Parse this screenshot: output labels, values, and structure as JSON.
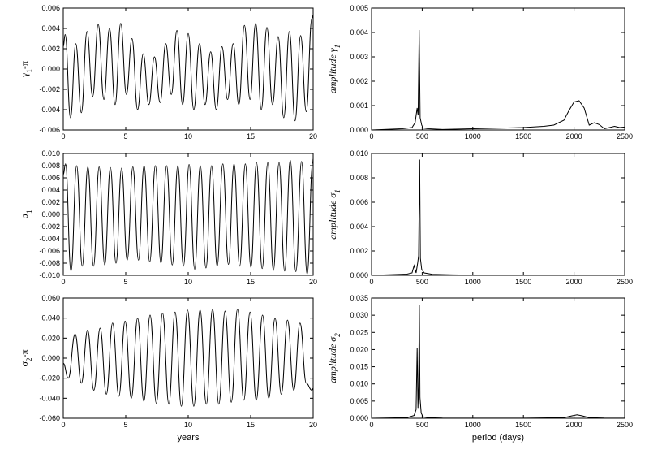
{
  "chart_data": [
    {
      "id": "gamma1",
      "type": "line",
      "ylabel": "γ1-π",
      "xlabel": "",
      "xlim": [
        0,
        20
      ],
      "ylim": [
        -0.006,
        0.006
      ],
      "xticks": [
        "0",
        "5",
        "10",
        "15",
        "20"
      ],
      "yticks": [
        "-0.006",
        "-0.004",
        "-0.002",
        "0.000",
        "0.002",
        "0.004",
        "0.006"
      ],
      "series": [
        {
          "x": [
            0,
            0.15,
            0.58,
            1.0,
            1.45,
            1.9,
            2.35,
            2.8,
            3.25,
            3.7,
            4.15,
            4.6,
            5.05,
            5.5,
            5.95,
            6.4,
            6.85,
            7.3,
            7.75,
            8.2,
            8.65,
            9.1,
            9.55,
            10.0,
            10.45,
            10.9,
            11.35,
            11.8,
            12.25,
            12.7,
            13.15,
            13.6,
            14.05,
            14.5,
            14.95,
            15.4,
            15.85,
            16.3,
            16.75,
            17.2,
            17.65,
            18.1,
            18.55,
            19.0,
            19.45,
            19.9,
            20.0
          ],
          "values": [
            0.0022,
            0.0034,
            -0.0048,
            0.0025,
            -0.0043,
            0.0037,
            -0.0027,
            0.0044,
            -0.003,
            0.004,
            -0.0035,
            0.0045,
            -0.0025,
            0.003,
            -0.004,
            0.0015,
            -0.0035,
            0.0012,
            -0.0033,
            0.0025,
            -0.0025,
            0.0038,
            -0.0035,
            0.0035,
            -0.004,
            0.0025,
            -0.0035,
            0.0017,
            -0.004,
            0.0022,
            -0.003,
            0.0025,
            -0.0035,
            0.0043,
            -0.003,
            0.0045,
            -0.004,
            0.0041,
            -0.0035,
            0.0032,
            -0.0048,
            0.0037,
            -0.0051,
            0.0033,
            -0.0042,
            0.005,
            0.0053
          ]
        }
      ]
    },
    {
      "id": "amp_gamma1",
      "type": "line",
      "ylabel": "amplitude γ1",
      "xlabel": "",
      "xlim": [
        0,
        2500
      ],
      "ylim": [
        0,
        0.005
      ],
      "xticks": [
        "0",
        "500",
        "1000",
        "1500",
        "2000",
        "2500"
      ],
      "yticks": [
        "0.000",
        "0.001",
        "0.002",
        "0.003",
        "0.004",
        "0.005"
      ],
      "series": [
        {
          "x": [
            0,
            300,
            400,
            430,
            450,
            460,
            470,
            480,
            495,
            510,
            560,
            700,
            1000,
            1300,
            1500,
            1700,
            1800,
            1900,
            1950,
            2000,
            2050,
            2100,
            2150,
            2200,
            2250,
            2300,
            2400,
            2450,
            2500
          ],
          "values": [
            0,
            5e-05,
            0.0001,
            0.0003,
            0.0009,
            0.0006,
            0.0041,
            0.0005,
            0.0002,
            8e-05,
            5e-05,
            2e-05,
            5e-05,
            8e-05,
            0.0001,
            0.00015,
            0.0002,
            0.0004,
            0.0008,
            0.00115,
            0.0012,
            0.0009,
            0.0002,
            0.0003,
            0.00022,
            5e-05,
            0.00015,
            0.0001,
            0.00012
          ]
        }
      ]
    },
    {
      "id": "sigma1",
      "type": "line",
      "ylabel": "σ1",
      "xlabel": "",
      "xlim": [
        0,
        20
      ],
      "ylim": [
        -0.01,
        0.01
      ],
      "xticks": [
        "0",
        "5",
        "10",
        "15",
        "20"
      ],
      "yticks": [
        "-0.010",
        "-0.008",
        "-0.006",
        "-0.004",
        "-0.002",
        "0.000",
        "0.002",
        "0.004",
        "0.006",
        "0.008",
        "0.010"
      ],
      "series": [
        {
          "x": [
            0,
            0.18,
            0.62,
            1.07,
            1.52,
            1.97,
            2.42,
            2.87,
            3.32,
            3.77,
            4.22,
            4.67,
            5.12,
            5.57,
            6.02,
            6.47,
            6.92,
            7.37,
            7.82,
            8.27,
            8.72,
            9.17,
            9.62,
            10.07,
            10.52,
            10.97,
            11.42,
            11.87,
            12.32,
            12.77,
            13.22,
            13.67,
            14.12,
            14.57,
            15.02,
            15.47,
            15.92,
            16.37,
            16.82,
            17.27,
            17.72,
            18.17,
            18.62,
            19.07,
            19.52,
            19.97,
            20.0
          ],
          "values": [
            0.0065,
            0.0083,
            -0.0093,
            0.008,
            -0.0085,
            0.0078,
            -0.0085,
            0.0078,
            -0.0083,
            0.0077,
            -0.008,
            0.0076,
            -0.0075,
            0.0078,
            -0.0075,
            0.008,
            -0.0078,
            0.008,
            -0.008,
            0.008,
            -0.0083,
            0.008,
            -0.0085,
            0.0082,
            -0.009,
            0.008,
            -0.0088,
            0.008,
            -0.0085,
            0.0083,
            -0.0082,
            0.0083,
            -0.0085,
            0.0083,
            -0.0087,
            0.0085,
            -0.0089,
            0.0085,
            -0.0092,
            0.0085,
            -0.0093,
            0.0089,
            -0.0094,
            0.0087,
            -0.0098,
            0.0085,
            0.0092
          ]
        }
      ]
    },
    {
      "id": "amp_sigma1",
      "type": "line",
      "ylabel": "amplitude σ1",
      "xlabel": "",
      "xlim": [
        0,
        2500
      ],
      "ylim": [
        0,
        0.01
      ],
      "xticks": [
        "0",
        "500",
        "1000",
        "1500",
        "2000",
        "2500"
      ],
      "yticks": [
        "0.000",
        "0.002",
        "0.004",
        "0.006",
        "0.008",
        "0.010"
      ],
      "series": [
        {
          "x": [
            0,
            350,
            400,
            420,
            440,
            455,
            465,
            475,
            482,
            495,
            520,
            600,
            800,
            1000,
            1500,
            2000,
            2500
          ],
          "values": [
            0,
            0.0001,
            0.0002,
            0.0008,
            0.0002,
            0.001,
            0.0016,
            0.0095,
            0.0014,
            0.0005,
            0.0002,
            8e-05,
            4e-05,
            2e-05,
            2e-05,
            3e-05,
            1e-05
          ]
        }
      ]
    },
    {
      "id": "sigma2",
      "type": "line",
      "ylabel": "σ2-π",
      "xlabel": "years",
      "xlim": [
        0,
        20
      ],
      "ylim": [
        -0.06,
        0.06
      ],
      "xticks": [
        "0",
        "5",
        "10",
        "15",
        "20"
      ],
      "yticks": [
        "-0.060",
        "-0.040",
        "-0.020",
        "0.000",
        "0.020",
        "0.040",
        "0.060"
      ],
      "series": [
        {
          "x": [
            0,
            0.4,
            0.95,
            1.45,
            1.95,
            2.45,
            2.95,
            3.45,
            3.95,
            4.45,
            4.95,
            5.45,
            5.95,
            6.45,
            6.95,
            7.45,
            7.95,
            8.45,
            8.95,
            9.45,
            9.95,
            10.45,
            10.95,
            11.45,
            11.95,
            12.45,
            12.95,
            13.45,
            13.95,
            14.45,
            14.95,
            15.45,
            15.95,
            16.45,
            16.95,
            17.45,
            17.95,
            18.45,
            18.95,
            19.45,
            19.9,
            20.0
          ],
          "values": [
            -0.005,
            -0.02,
            0.024,
            -0.025,
            0.028,
            -0.032,
            0.03,
            -0.036,
            0.035,
            -0.038,
            0.037,
            -0.04,
            0.04,
            -0.043,
            0.043,
            -0.045,
            0.045,
            -0.046,
            0.046,
            -0.048,
            0.048,
            -0.048,
            0.048,
            -0.046,
            0.049,
            -0.046,
            0.047,
            -0.044,
            0.049,
            -0.042,
            0.046,
            -0.042,
            0.043,
            -0.04,
            0.04,
            -0.036,
            0.038,
            -0.032,
            0.035,
            -0.025,
            -0.032,
            -0.03
          ]
        }
      ]
    },
    {
      "id": "amp_sigma2",
      "type": "line",
      "ylabel": "amplitude σ2",
      "xlabel": "period (days)",
      "xlim": [
        0,
        2500
      ],
      "ylim": [
        0,
        0.035
      ],
      "xticks": [
        "0",
        "500",
        "1000",
        "1500",
        "2000",
        "2500"
      ],
      "yticks": [
        "0.000",
        "0.005",
        "0.010",
        "0.015",
        "0.020",
        "0.025",
        "0.030",
        "0.035"
      ],
      "series": [
        {
          "x": [
            0,
            350,
            420,
            440,
            450,
            458,
            465,
            472,
            478,
            490,
            510,
            560,
            700,
            1000,
            1500,
            1900,
            1980,
            2030,
            2080,
            2150,
            2300,
            2500
          ],
          "values": [
            0,
            0.0002,
            0.0008,
            0.0025,
            0.0205,
            0.003,
            0.009,
            0.033,
            0.006,
            0.0015,
            0.0004,
            0.0002,
            8e-05,
            3e-05,
            3e-05,
            0.0002,
            0.0007,
            0.001,
            0.0007,
            0.0002,
            5e-05,
            2e-05
          ]
        }
      ]
    }
  ]
}
